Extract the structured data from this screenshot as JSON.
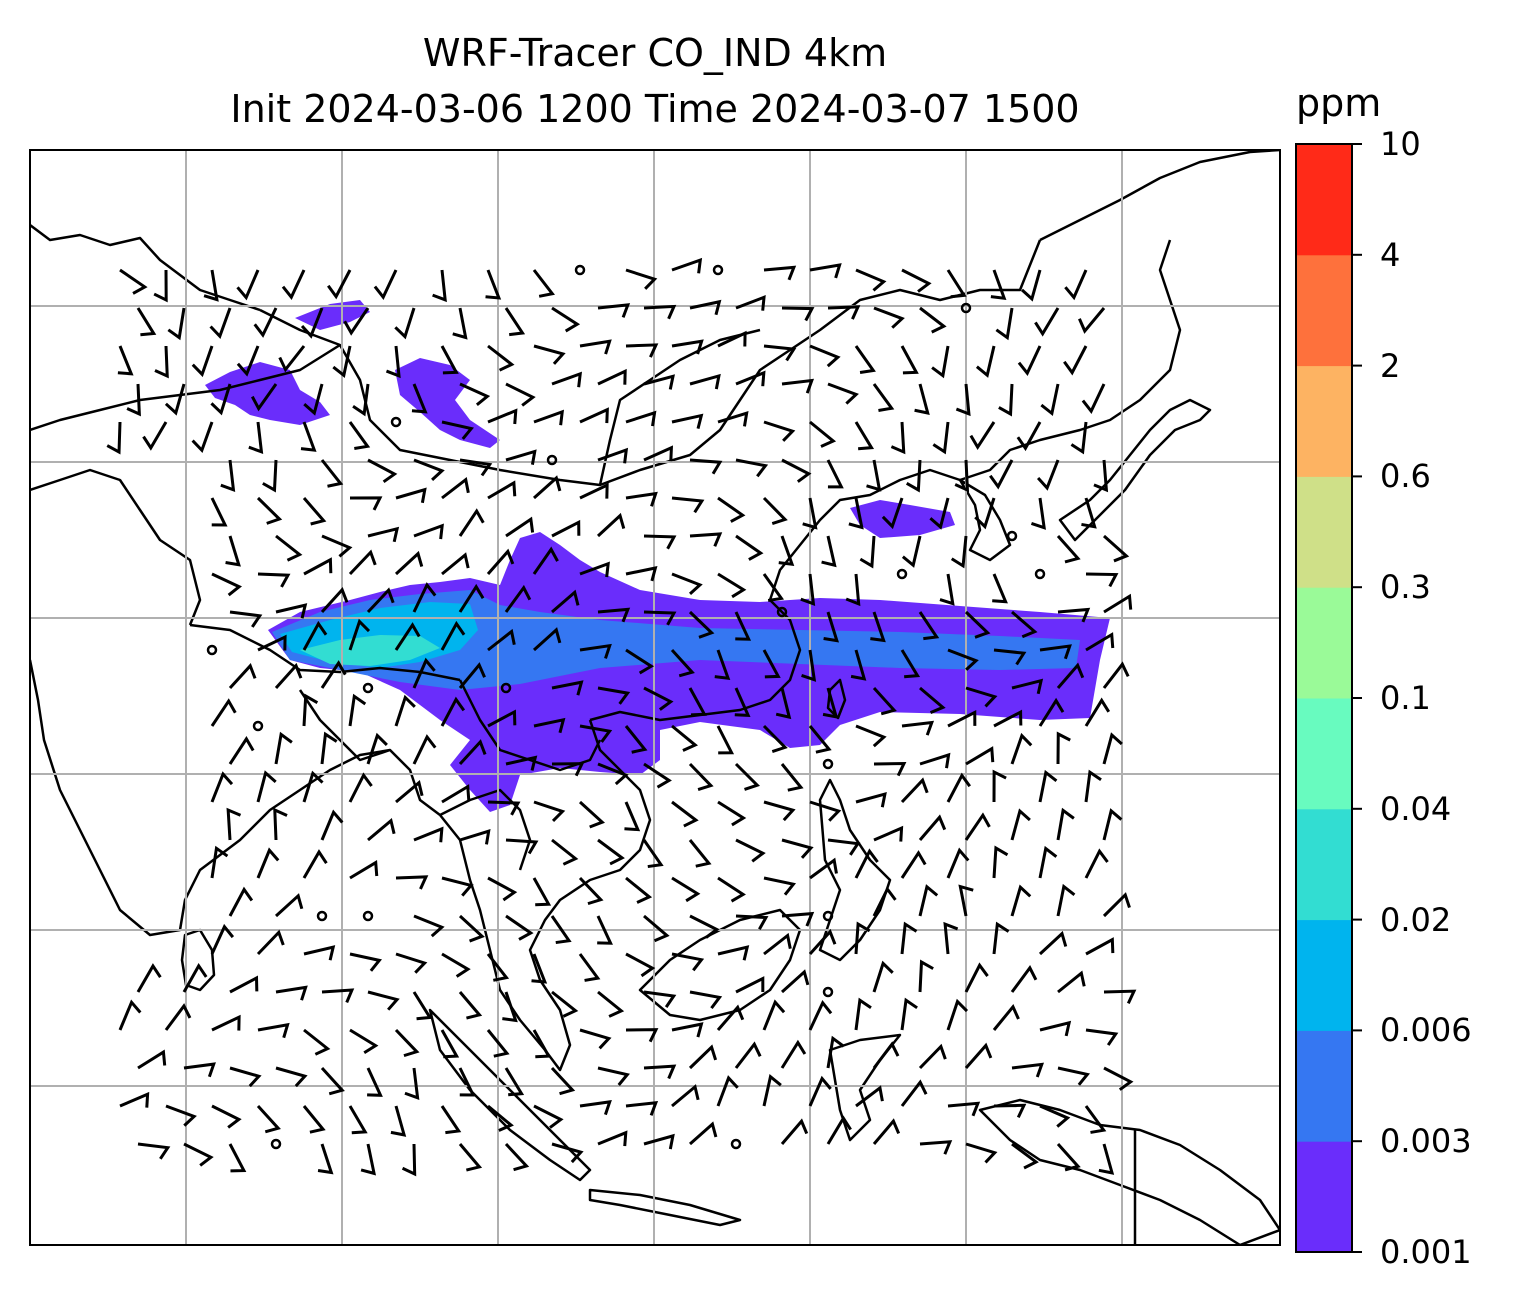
{
  "title": {
    "line1": "WRF-Tracer CO_IND 4km",
    "line2": "Init 2024-03-06 1200 Time 2024-03-07 1500"
  },
  "colorbar": {
    "unit": "ppm",
    "levels": [
      "0.001",
      "0.003",
      "0.006",
      "0.02",
      "0.04",
      "0.1",
      "0.3",
      "0.6",
      "2",
      "4",
      "10"
    ],
    "colors": [
      "#6a2dfb",
      "#3577f2",
      "#00b4ee",
      "#32ddd2",
      "#68fbbf",
      "#9afa98",
      "#cfe088",
      "#fdb362",
      "#fe713c",
      "#ff2a18"
    ]
  },
  "map": {
    "background": "#ffffff",
    "gridlines": true,
    "features": [
      "coastlines",
      "country-borders",
      "wind-barbs",
      "tracer-plume"
    ]
  }
}
